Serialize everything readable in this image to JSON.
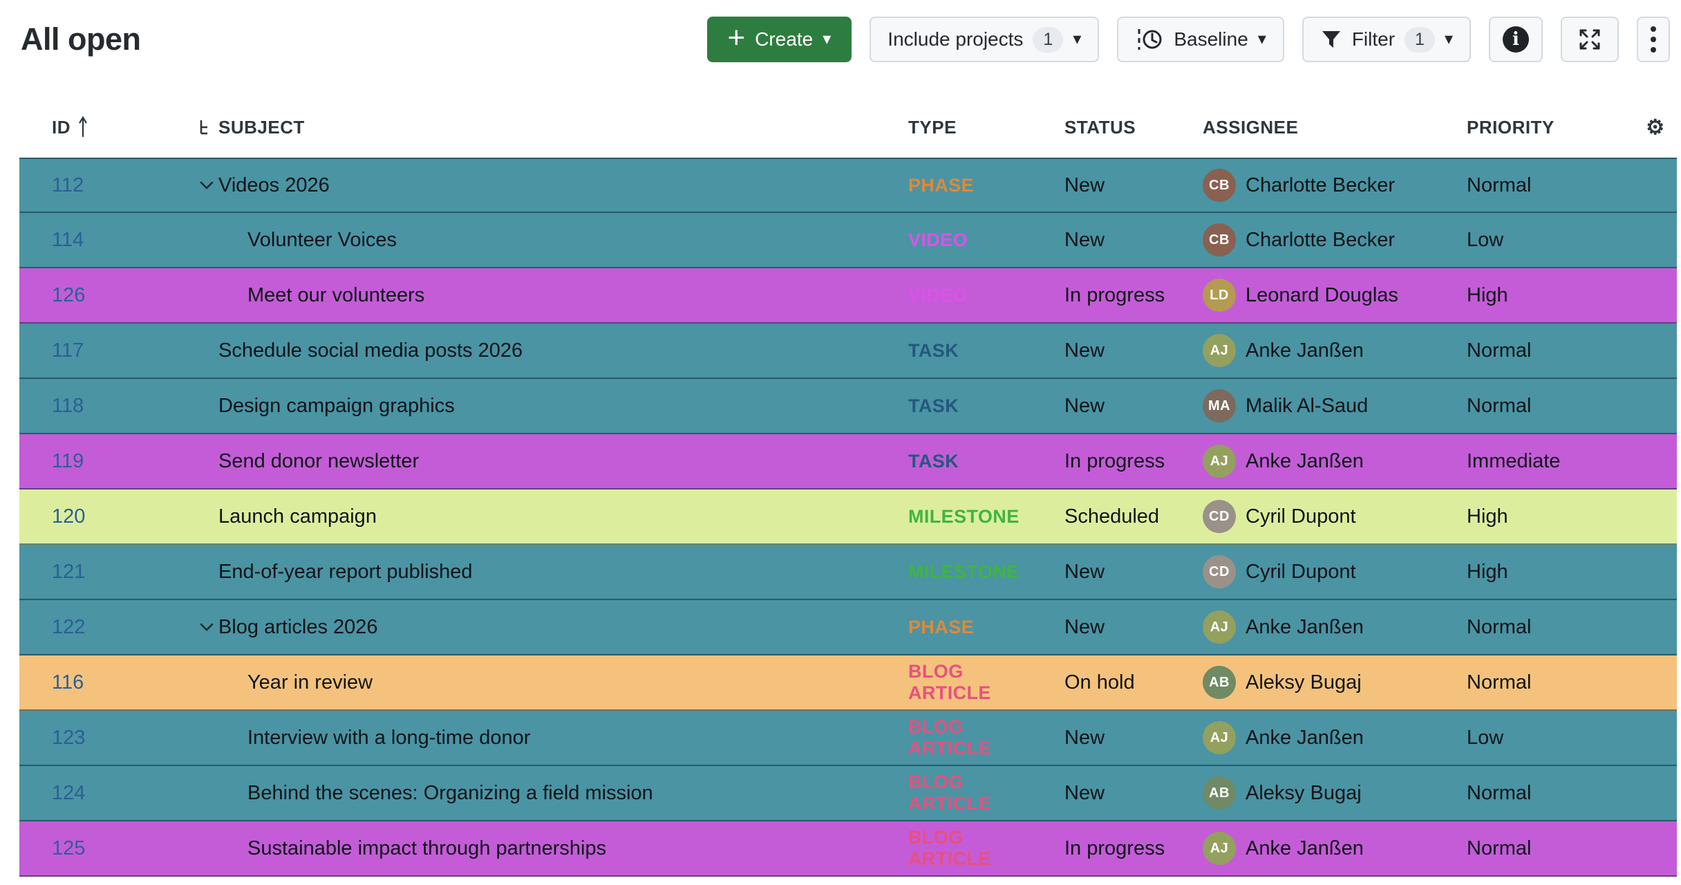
{
  "page": {
    "title": "All open"
  },
  "toolbar": {
    "create": {
      "label": "Create",
      "plus_icon": "+",
      "caret_icon": "▾"
    },
    "include_projects": {
      "label": "Include projects",
      "badge": "1",
      "caret_icon": "▾"
    },
    "baseline": {
      "label": "Baseline",
      "caret_icon": "▾"
    },
    "filter": {
      "label": "Filter",
      "badge": "1",
      "caret_icon": "▾"
    },
    "info_icon_glyph": "i",
    "settings_icon_glyph": "⚙"
  },
  "table": {
    "columns": {
      "id": "ID",
      "subject": "SUBJECT",
      "type": "TYPE",
      "status": "STATUS",
      "assignee": "ASSIGNEE",
      "priority": "PRIORITY"
    },
    "rows": [
      {
        "id": "112",
        "subject": "Videos 2026",
        "type": "PHASE",
        "type_key": "phase",
        "status": "New",
        "assignee": {
          "name": "Charlotte Becker",
          "initials": "CB",
          "avatar_color": "#8a6050"
        },
        "priority": "Normal",
        "row_color": "teal",
        "indent": 0,
        "has_children": true
      },
      {
        "id": "114",
        "subject": "Volunteer Voices",
        "type": "VIDEO",
        "type_key": "video",
        "status": "New",
        "assignee": {
          "name": "Charlotte Becker",
          "initials": "CB",
          "avatar_color": "#8a6050"
        },
        "priority": "Low",
        "row_color": "teal",
        "indent": 1,
        "has_children": false
      },
      {
        "id": "126",
        "subject": "Meet our volunteers",
        "type": "VIDEO",
        "type_key": "video",
        "status": "In progress",
        "assignee": {
          "name": "Leonard Douglas",
          "initials": "LD",
          "avatar_color": "#b49b4f"
        },
        "priority": "High",
        "row_color": "purple",
        "indent": 1,
        "has_children": false
      },
      {
        "id": "117",
        "subject": "Schedule social media posts 2026",
        "type": "TASK",
        "type_key": "task",
        "status": "New",
        "assignee": {
          "name": "Anke Janßen",
          "initials": "AJ",
          "avatar_color": "#94a05e"
        },
        "priority": "Normal",
        "row_color": "teal",
        "indent": 0,
        "has_children": false
      },
      {
        "id": "118",
        "subject": "Design campaign graphics",
        "type": "TASK",
        "type_key": "task",
        "status": "New",
        "assignee": {
          "name": "Malik Al-Saud",
          "initials": "MA",
          "avatar_color": "#7d6a5d"
        },
        "priority": "Normal",
        "row_color": "teal",
        "indent": 0,
        "has_children": false
      },
      {
        "id": "119",
        "subject": "Send donor newsletter",
        "type": "TASK",
        "type_key": "task",
        "status": "In progress",
        "assignee": {
          "name": "Anke Janßen",
          "initials": "AJ",
          "avatar_color": "#94a05e"
        },
        "priority": "Immediate",
        "row_color": "purple",
        "indent": 0,
        "has_children": false
      },
      {
        "id": "120",
        "subject": "Launch campaign",
        "type": "MILESTONE",
        "type_key": "milestone",
        "status": "Scheduled",
        "assignee": {
          "name": "Cyril Dupont",
          "initials": "CD",
          "avatar_color": "#9a9288"
        },
        "priority": "High",
        "row_color": "lime",
        "indent": 0,
        "has_children": false
      },
      {
        "id": "121",
        "subject": "End-of-year report published",
        "type": "MILESTONE",
        "type_key": "milestone",
        "status": "New",
        "assignee": {
          "name": "Cyril Dupont",
          "initials": "CD",
          "avatar_color": "#9a9288"
        },
        "priority": "High",
        "row_color": "teal",
        "indent": 0,
        "has_children": false
      },
      {
        "id": "122",
        "subject": "Blog articles 2026",
        "type": "PHASE",
        "type_key": "phase",
        "status": "New",
        "assignee": {
          "name": "Anke Janßen",
          "initials": "AJ",
          "avatar_color": "#94a05e"
        },
        "priority": "Normal",
        "row_color": "teal",
        "indent": 0,
        "has_children": true
      },
      {
        "id": "116",
        "subject": "Year in review",
        "type": "BLOG ARTICLE",
        "type_key": "blog_article",
        "status": "On hold",
        "assignee": {
          "name": "Aleksy Bugaj",
          "initials": "AB",
          "avatar_color": "#6f8a64"
        },
        "priority": "Normal",
        "row_color": "orange",
        "indent": 1,
        "has_children": false
      },
      {
        "id": "123",
        "subject": "Interview with a long-time donor",
        "type": "BLOG ARTICLE",
        "type_key": "blog_article",
        "status": "New",
        "assignee": {
          "name": "Anke Janßen",
          "initials": "AJ",
          "avatar_color": "#94a05e"
        },
        "priority": "Low",
        "row_color": "teal",
        "indent": 1,
        "has_children": false
      },
      {
        "id": "124",
        "subject": "Behind the scenes: Organizing a field mission",
        "type": "BLOG ARTICLE",
        "type_key": "blog_article",
        "status": "New",
        "assignee": {
          "name": "Aleksy Bugaj",
          "initials": "AB",
          "avatar_color": "#6f8a64"
        },
        "priority": "Normal",
        "row_color": "teal",
        "indent": 1,
        "has_children": false
      },
      {
        "id": "125",
        "subject": "Sustainable impact through partnerships",
        "type": "BLOG ARTICLE",
        "type_key": "blog_article",
        "status": "In progress",
        "assignee": {
          "name": "Anke Janßen",
          "initials": "AJ",
          "avatar_color": "#94a05e"
        },
        "priority": "Normal",
        "row_color": "purple",
        "indent": 1,
        "has_children": false
      }
    ]
  },
  "colors": {
    "accent_green": "#2e7d40",
    "row": {
      "teal": "#4a94a4",
      "purple": "#c45cd8",
      "lime": "#dcee9e",
      "orange": "#f4c27d"
    },
    "type": {
      "phase": "#e08937",
      "video": "#dc52e8",
      "task": "#24587e",
      "milestone": "#3fb53f",
      "blog_article": "#e8507e"
    },
    "id_link": "#2b5f97"
  }
}
